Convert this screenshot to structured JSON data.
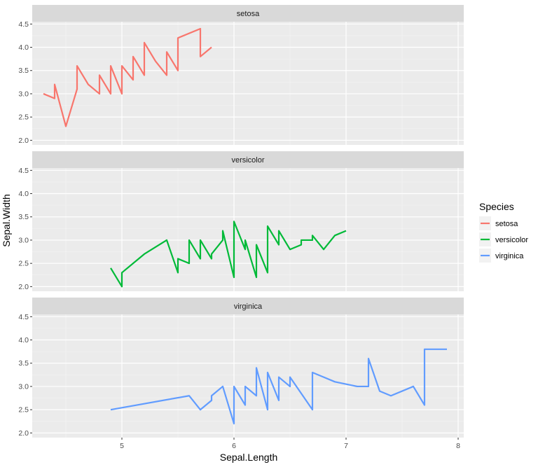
{
  "chart_data": {
    "type": "line",
    "facet_by": "Species",
    "xlabel": "Sepal.Length",
    "ylabel": "Sepal.Width",
    "xlim": [
      4.2,
      8.05
    ],
    "ylim": [
      1.9,
      4.55
    ],
    "x_ticks": [
      5,
      6,
      7,
      8
    ],
    "y_ticks": [
      2.0,
      2.5,
      3.0,
      3.5,
      4.0,
      4.5
    ],
    "y_tick_labels": [
      "2.0",
      "2.5",
      "3.0",
      "3.5",
      "4.0",
      "4.5"
    ],
    "grid": true,
    "legend": {
      "title": "Species",
      "position": "right",
      "entries": [
        "setosa",
        "versicolor",
        "virginica"
      ]
    },
    "panels": [
      {
        "strip": "setosa",
        "color": "#F8766D",
        "x": [
          4.3,
          4.4,
          4.4,
          4.4,
          4.5,
          4.6,
          4.6,
          4.6,
          4.6,
          4.7,
          4.7,
          4.8,
          4.8,
          4.8,
          4.8,
          4.8,
          4.9,
          4.9,
          4.9,
          4.9,
          5.0,
          5.0,
          5.0,
          5.0,
          5.0,
          5.0,
          5.0,
          5.0,
          5.1,
          5.1,
          5.1,
          5.1,
          5.1,
          5.1,
          5.1,
          5.1,
          5.1,
          5.2,
          5.2,
          5.2,
          5.3,
          5.4,
          5.4,
          5.4,
          5.4,
          5.4,
          5.5,
          5.5,
          5.7,
          5.7,
          5.8
        ],
        "y": [
          3.0,
          2.9,
          3.0,
          3.2,
          2.3,
          3.1,
          3.2,
          3.4,
          3.6,
          3.2,
          3.2,
          3.0,
          3.0,
          3.1,
          3.4,
          3.4,
          3.0,
          3.1,
          3.6,
          3.6,
          3.0,
          3.2,
          3.3,
          3.4,
          3.4,
          3.5,
          3.5,
          3.6,
          3.3,
          3.4,
          3.5,
          3.5,
          3.5,
          3.7,
          3.8,
          3.8,
          3.8,
          3.4,
          3.5,
          4.1,
          3.7,
          3.4,
          3.7,
          3.9,
          3.9,
          3.9,
          3.5,
          4.2,
          4.4,
          3.8,
          4.0
        ]
      },
      {
        "strip": "versicolor",
        "color": "#00BA38",
        "x": [
          4.9,
          5.0,
          5.0,
          5.2,
          5.4,
          5.5,
          5.5,
          5.5,
          5.5,
          5.5,
          5.6,
          5.6,
          5.6,
          5.6,
          5.6,
          5.7,
          5.7,
          5.7,
          5.7,
          5.7,
          5.8,
          5.8,
          5.8,
          5.9,
          5.9,
          6.0,
          6.0,
          6.0,
          6.0,
          6.1,
          6.1,
          6.1,
          6.1,
          6.2,
          6.2,
          6.3,
          6.3,
          6.3,
          6.4,
          6.4,
          6.5,
          6.6,
          6.6,
          6.7,
          6.7,
          6.7,
          6.8,
          6.9,
          7.0
        ],
        "y": [
          2.4,
          2.0,
          2.3,
          2.7,
          3.0,
          2.3,
          2.4,
          2.4,
          2.5,
          2.6,
          2.5,
          2.7,
          2.9,
          3.0,
          3.0,
          2.6,
          2.8,
          2.8,
          2.9,
          3.0,
          2.6,
          2.7,
          2.7,
          3.0,
          3.2,
          2.2,
          2.7,
          2.9,
          3.4,
          2.8,
          2.8,
          2.9,
          3.0,
          2.2,
          2.9,
          2.3,
          2.5,
          3.3,
          2.9,
          3.2,
          2.8,
          2.9,
          3.0,
          3.0,
          3.1,
          3.1,
          2.8,
          3.1,
          3.2
        ]
      },
      {
        "strip": "virginica",
        "color": "#619CFF",
        "x": [
          4.9,
          5.6,
          5.7,
          5.8,
          5.8,
          5.8,
          5.9,
          6.0,
          6.0,
          6.1,
          6.1,
          6.2,
          6.2,
          6.3,
          6.3,
          6.3,
          6.3,
          6.4,
          6.4,
          6.4,
          6.5,
          6.5,
          6.5,
          6.7,
          6.7,
          6.7,
          6.7,
          6.7,
          6.8,
          6.9,
          6.9,
          7.1,
          7.2,
          7.2,
          7.2,
          7.3,
          7.4,
          7.6,
          7.7,
          7.7,
          7.7,
          7.7,
          7.9
        ],
        "y": [
          2.5,
          2.8,
          2.5,
          2.7,
          2.7,
          2.8,
          3.0,
          2.2,
          3.0,
          2.6,
          3.0,
          2.8,
          3.4,
          2.5,
          2.7,
          2.8,
          3.3,
          2.7,
          2.8,
          3.2,
          3.0,
          3.0,
          3.2,
          2.5,
          3.0,
          3.0,
          3.1,
          3.3,
          3.2,
          3.1,
          3.1,
          3.0,
          3.0,
          3.2,
          3.6,
          2.9,
          2.8,
          3.0,
          2.6,
          2.8,
          3.0,
          3.8,
          3.8
        ]
      }
    ]
  }
}
